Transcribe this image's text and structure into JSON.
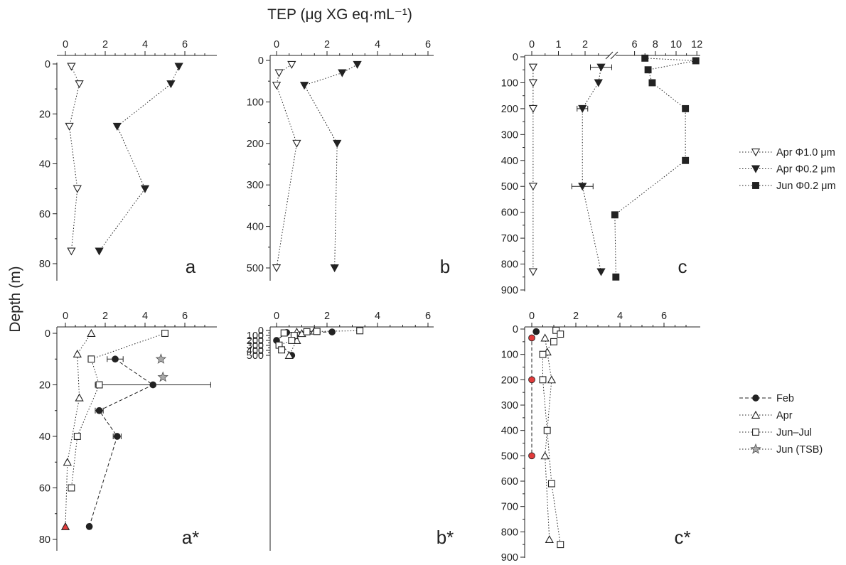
{
  "figure": {
    "top_title": "TEP (μg XG eq·mL⁻¹)",
    "left_title": "Depth (m)"
  },
  "legend_top": [
    {
      "label": "Apr Φ1.0 μm",
      "marker": "tri-down-open"
    },
    {
      "label": "Apr Φ0.2 μm",
      "marker": "tri-down-filled"
    },
    {
      "label": "Jun Φ0.2 μm",
      "marker": "square-filled"
    }
  ],
  "legend_bottom": [
    {
      "label": "Feb",
      "marker": "circle-filled",
      "dash": "dashed"
    },
    {
      "label": "Apr",
      "marker": "tri-up-open",
      "dash": "dotted"
    },
    {
      "label": "Jun–Jul",
      "marker": "square-open",
      "dash": "dotted"
    },
    {
      "label": "Jun (TSB)",
      "marker": "star-gray",
      "dash": "dotted"
    }
  ],
  "colors": {
    "red_marker": "#e23b3b",
    "gray_star": "#a9a9a9",
    "ink": "#222222"
  },
  "chart_data": [
    {
      "panel": "a",
      "type": "scatter",
      "xlim": [
        0,
        7
      ],
      "xticks": [
        0,
        2,
        4,
        6
      ],
      "ylim": [
        0,
        85
      ],
      "yticks": [
        0,
        20,
        40,
        60,
        80
      ],
      "inverted_y": true,
      "series": [
        {
          "name": "Apr Φ1.0 μm",
          "marker": "tri-down-open",
          "x": [
            0.3,
            0.7,
            0.2,
            0.6,
            0.3
          ],
          "y": [
            1,
            8,
            25,
            50,
            75
          ]
        },
        {
          "name": "Apr Φ0.2 μm",
          "marker": "tri-down-filled",
          "x": [
            5.7,
            5.3,
            2.6,
            4.0,
            1.7
          ],
          "y": [
            1,
            8,
            25,
            50,
            75
          ]
        }
      ]
    },
    {
      "panel": "b",
      "type": "scatter",
      "xlim": [
        0,
        7
      ],
      "xticks": [
        0,
        2,
        4,
        6
      ],
      "ylim": [
        0,
        540
      ],
      "yticks": [
        0,
        100,
        200,
        300,
        400,
        500
      ],
      "inverted_y": true,
      "series": [
        {
          "name": "Apr Φ1.0 μm",
          "marker": "tri-down-open",
          "x": [
            0.6,
            0.1,
            0.0,
            0.8,
            0.0
          ],
          "y": [
            10,
            30,
            60,
            200,
            500
          ]
        },
        {
          "name": "Apr Φ0.2 μm",
          "marker": "tri-down-filled",
          "x": [
            3.2,
            2.6,
            1.1,
            2.4,
            2.3
          ],
          "y": [
            10,
            30,
            60,
            200,
            500
          ]
        }
      ]
    },
    {
      "panel": "c",
      "type": "scatter",
      "axis_break": true,
      "xlim_left": [
        0,
        3.2
      ],
      "xlim_right": [
        5,
        12
      ],
      "xticks": [
        0,
        1,
        2,
        6,
        8,
        10,
        12
      ],
      "ylim": [
        0,
        900
      ],
      "yticks": [
        0,
        100,
        200,
        300,
        400,
        500,
        600,
        700,
        800,
        900
      ],
      "inverted_y": true,
      "series": [
        {
          "name": "Apr Φ1.0 μm",
          "marker": "tri-down-open",
          "x": [
            0.05,
            0.05,
            0.05,
            0.05,
            0.05
          ],
          "y": [
            40,
            100,
            200,
            500,
            830
          ]
        },
        {
          "name": "Apr Φ0.2 μm",
          "marker": "tri-down-filled",
          "x": [
            2.6,
            2.5,
            1.9,
            1.9,
            2.6
          ],
          "y": [
            40,
            100,
            200,
            500,
            830
          ],
          "xerr": [
            0.4,
            0,
            0.2,
            0.4,
            0
          ]
        },
        {
          "name": "Jun Φ0.2 μm",
          "marker": "square-filled",
          "x": [
            7.0,
            11.9,
            7.3,
            7.7,
            10.9,
            10.9,
            4.1,
            4.2
          ],
          "y": [
            5,
            15,
            50,
            100,
            200,
            400,
            610,
            850
          ]
        }
      ]
    },
    {
      "panel": "a*",
      "type": "scatter",
      "xlim": [
        0,
        7
      ],
      "xticks": [
        0,
        2,
        4,
        6
      ],
      "ylim": [
        0,
        80
      ],
      "yticks": [
        0,
        20,
        40,
        60,
        80
      ],
      "inverted_y": true,
      "series": [
        {
          "name": "Feb",
          "marker": "circle-filled",
          "dash": "dashed",
          "x": [
            2.5,
            4.4,
            1.7,
            2.6,
            1.2
          ],
          "y": [
            10,
            20,
            30,
            40,
            75
          ],
          "xerr": [
            0.4,
            2.9,
            0.2,
            0.2,
            0.1
          ]
        },
        {
          "name": "Apr",
          "marker": "tri-up-open",
          "dash": "dotted",
          "x": [
            1.3,
            0.6,
            0.7,
            0.1,
            0.0
          ],
          "y": [
            0,
            8,
            25,
            50,
            75
          ],
          "red_last": true
        },
        {
          "name": "Jun–Jul",
          "marker": "square-open",
          "dash": "dotted",
          "x": [
            5.0,
            1.3,
            1.7,
            0.6,
            0.3
          ],
          "y": [
            0,
            10,
            20,
            40,
            60
          ]
        },
        {
          "name": "Jun (TSB)",
          "marker": "star-gray",
          "dash": "none",
          "x": [
            4.8,
            4.9
          ],
          "y": [
            10,
            17
          ]
        }
      ]
    },
    {
      "panel": "b*",
      "type": "scatter",
      "xlim": [
        0,
        7
      ],
      "xticks": [
        0,
        2,
        4,
        6
      ],
      "ylim": [
        0,
        520
      ],
      "yticks": [
        0,
        100,
        200,
        300,
        400,
        500
      ],
      "inverted_y": true,
      "series": [
        {
          "name": "Feb",
          "marker": "circle-filled",
          "dash": "dashed",
          "x": [
            2.2,
            0.4,
            0.0,
            0.6
          ],
          "y": [
            30,
            40,
            200,
            500
          ]
        },
        {
          "name": "Apr",
          "marker": "tri-up-open",
          "dash": "dotted",
          "x": [
            1.5,
            0.8,
            1.0,
            0.8,
            0.5
          ],
          "y": [
            10,
            30,
            60,
            200,
            500
          ]
        },
        {
          "name": "Jun–Jul",
          "marker": "square-open",
          "dash": "dotted",
          "x": [
            3.3,
            1.6,
            1.2,
            0.3,
            0.7,
            0.6,
            0.1,
            0.2
          ],
          "y": [
            5,
            20,
            25,
            50,
            100,
            200,
            295,
            390
          ]
        }
      ]
    },
    {
      "panel": "c*",
      "type": "scatter",
      "xlim": [
        0,
        7
      ],
      "xticks": [
        0,
        2,
        4,
        6
      ],
      "ylim": [
        0,
        900
      ],
      "yticks": [
        0,
        100,
        200,
        300,
        400,
        500,
        600,
        700,
        800,
        900
      ],
      "inverted_y": true,
      "series": [
        {
          "name": "Feb",
          "marker": "circle-filled",
          "dash": "dashed",
          "x": [
            0.2,
            0.0,
            0.0,
            0.0
          ],
          "y": [
            10,
            35,
            200,
            500
          ],
          "red": [
            false,
            true,
            true,
            true
          ]
        },
        {
          "name": "Apr",
          "marker": "tri-up-open",
          "dash": "dotted",
          "x": [
            0.6,
            0.7,
            0.9,
            0.6,
            0.8
          ],
          "y": [
            35,
            90,
            200,
            500,
            830
          ]
        },
        {
          "name": "Jun–Jul",
          "marker": "square-open",
          "dash": "dotted",
          "x": [
            1.1,
            1.3,
            1.0,
            0.5,
            0.5,
            0.7,
            0.9,
            1.3
          ],
          "y": [
            5,
            20,
            50,
            100,
            200,
            400,
            610,
            850
          ]
        }
      ]
    }
  ]
}
